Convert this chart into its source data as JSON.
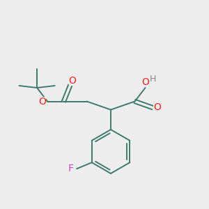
{
  "background_color": "#ededed",
  "bond_color": "#3d7a6e",
  "oxygen_color": "#ff2020",
  "fluorine_color": "#cc44cc",
  "hydrogen_color": "#888888",
  "figsize": [
    3.0,
    3.0
  ],
  "dpi": 100,
  "xlim": [
    0,
    10
  ],
  "ylim": [
    0,
    10
  ]
}
